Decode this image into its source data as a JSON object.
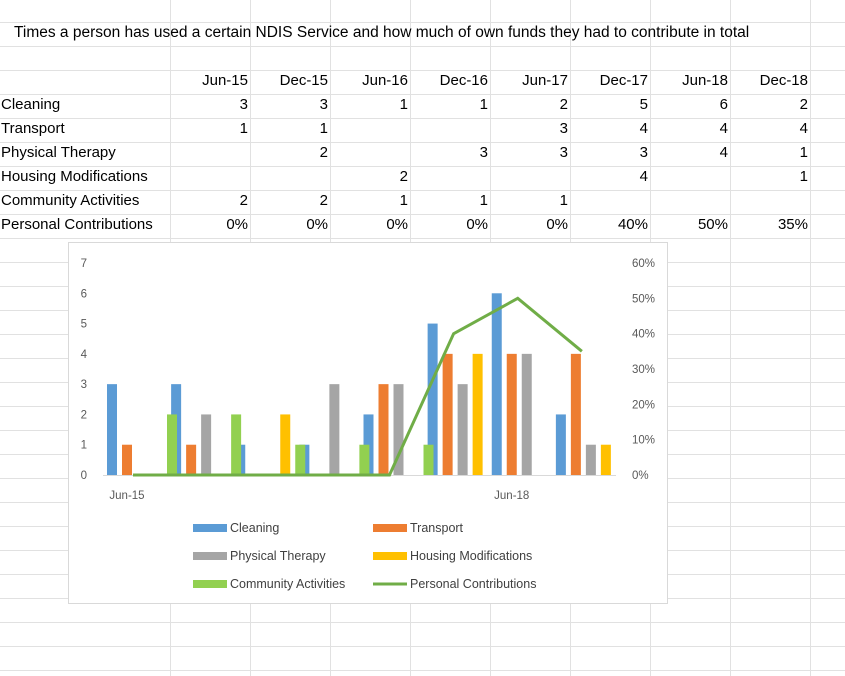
{
  "sheet": {
    "title": "Times a person has used a certain NDIS Service and how much of own funds they had to contribute in total",
    "periods": [
      "Jun-15",
      "Dec-15",
      "Jun-16",
      "Dec-16",
      "Jun-17",
      "Dec-17",
      "Jun-18",
      "Dec-18"
    ],
    "rows": [
      {
        "label": "Cleaning",
        "values": [
          "3",
          "3",
          "1",
          "1",
          "2",
          "5",
          "6",
          "2"
        ]
      },
      {
        "label": "Transport",
        "values": [
          "1",
          "1",
          "",
          "",
          "3",
          "4",
          "4",
          "4"
        ]
      },
      {
        "label": "Physical Therapy",
        "values": [
          "",
          "2",
          "",
          "3",
          "3",
          "3",
          "4",
          "1"
        ]
      },
      {
        "label": "Housing Modifications",
        "values": [
          "",
          "",
          "2",
          "",
          "",
          "4",
          "",
          "1"
        ]
      },
      {
        "label": "Community Activities",
        "values": [
          "2",
          "2",
          "1",
          "1",
          "1",
          "",
          "",
          ""
        ]
      },
      {
        "label": "Personal Contributions",
        "values": [
          "0%",
          "0%",
          "0%",
          "0%",
          "0%",
          "40%",
          "50%",
          "35%"
        ]
      }
    ]
  },
  "chart_data": {
    "type": "bar",
    "categories": [
      "Jun-15",
      "Dec-15",
      "Jun-16",
      "Dec-16",
      "Jun-17",
      "Dec-17",
      "Jun-18",
      "Dec-18"
    ],
    "x_tick_labels": [
      "Jun-15",
      "Jun-18"
    ],
    "ylim": [
      0,
      7
    ],
    "y_ticks": [
      "0",
      "1",
      "2",
      "3",
      "4",
      "5",
      "6",
      "7"
    ],
    "y2lim": [
      0,
      0.6
    ],
    "y2_ticks": [
      "0%",
      "10%",
      "20%",
      "30%",
      "40%",
      "50%",
      "60%"
    ],
    "legend_position": "bottom",
    "series": [
      {
        "name": "Cleaning",
        "type": "bar",
        "axis": "left",
        "color": "#5b9bd5",
        "values": [
          3,
          3,
          1,
          1,
          2,
          5,
          6,
          2
        ]
      },
      {
        "name": "Transport",
        "type": "bar",
        "axis": "left",
        "color": "#ed7d31",
        "values": [
          1,
          1,
          0,
          0,
          3,
          4,
          4,
          4
        ]
      },
      {
        "name": "Physical Therapy",
        "type": "bar",
        "axis": "left",
        "color": "#a5a5a5",
        "values": [
          0,
          2,
          0,
          3,
          3,
          3,
          4,
          1
        ]
      },
      {
        "name": "Housing Modifications",
        "type": "bar",
        "axis": "left",
        "color": "#ffc000",
        "values": [
          0,
          0,
          2,
          0,
          0,
          4,
          0,
          1
        ]
      },
      {
        "name": "Community Activities",
        "type": "bar",
        "axis": "left",
        "color": "#92d050",
        "values": [
          2,
          2,
          1,
          1,
          1,
          0,
          0,
          0
        ]
      },
      {
        "name": "Personal Contributions",
        "type": "line",
        "axis": "right",
        "color": "#70ad47",
        "values": [
          0,
          0,
          0,
          0,
          0,
          0.4,
          0.5,
          0.35
        ]
      }
    ]
  }
}
